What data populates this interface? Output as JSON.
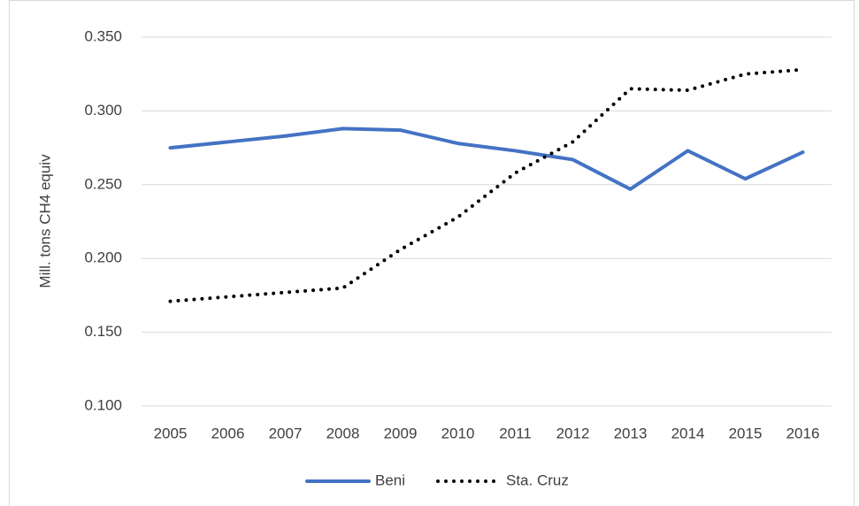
{
  "chart_data": {
    "type": "line",
    "y_label": "Mill. tons CH4 equiv",
    "categories": [
      "2005",
      "2006",
      "2007",
      "2008",
      "2009",
      "2010",
      "2011",
      "2012",
      "2013",
      "2014",
      "2015",
      "2016"
    ],
    "series": [
      {
        "name": "Beni",
        "color": "#4472c4",
        "line_style": "solid",
        "values": [
          0.275,
          0.279,
          0.283,
          0.288,
          0.287,
          0.278,
          0.273,
          0.267,
          0.247,
          0.273,
          0.254,
          0.272
        ]
      },
      {
        "name": "Sta. Cruz",
        "color": "#000000",
        "line_style": "dotted",
        "values": [
          0.171,
          0.174,
          0.177,
          0.18,
          0.206,
          0.228,
          0.258,
          0.279,
          0.315,
          0.314,
          0.325,
          0.328
        ]
      }
    ],
    "ylim": [
      0.1,
      0.35
    ],
    "yticks": [
      {
        "value": 0.1,
        "label": "0.100"
      },
      {
        "value": 0.15,
        "label": "0.150"
      },
      {
        "value": 0.2,
        "label": "0.200"
      },
      {
        "value": 0.25,
        "label": "0.250"
      },
      {
        "value": 0.3,
        "label": "0.300"
      },
      {
        "value": 0.35,
        "label": "0.350"
      }
    ],
    "grid": true,
    "legend": "bottom"
  }
}
